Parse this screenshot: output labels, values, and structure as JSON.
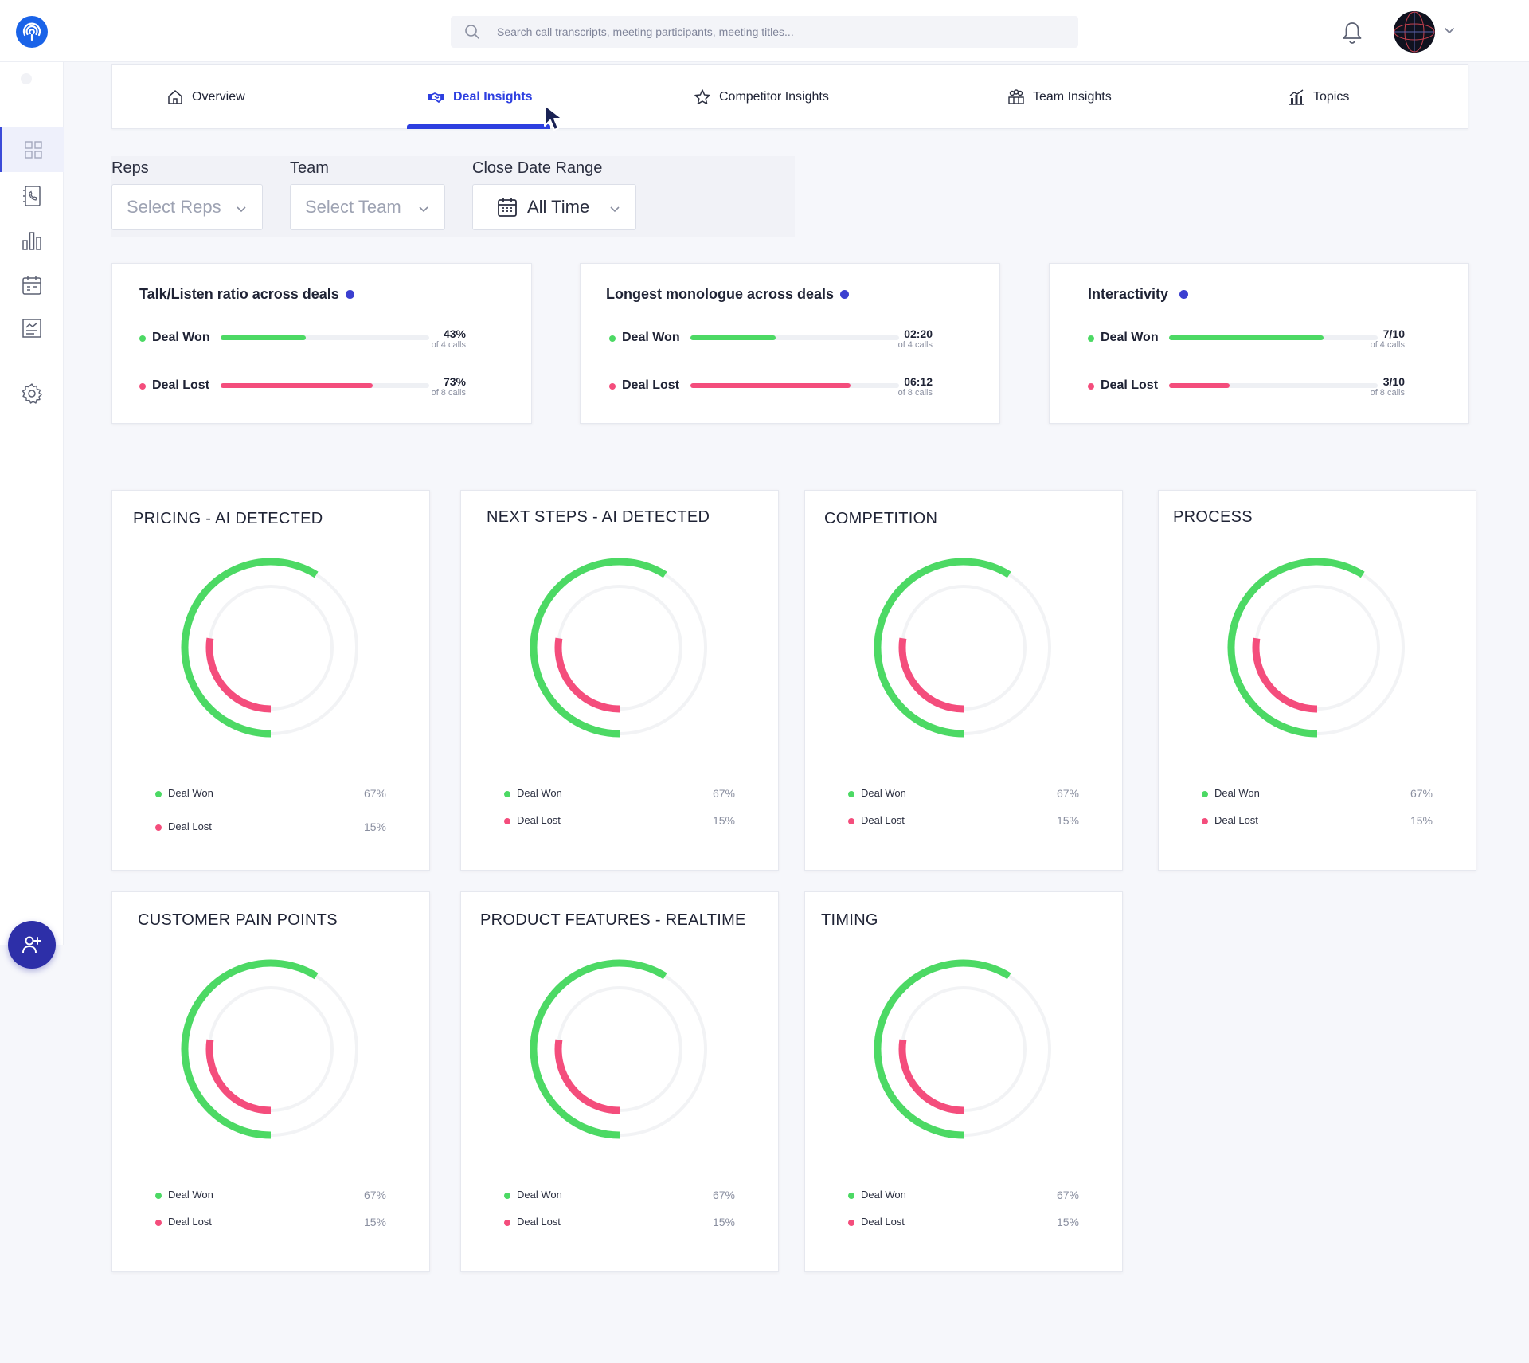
{
  "colors": {
    "won": "#4cd964",
    "lost": "#f44d7c",
    "accent": "#2d3fe0",
    "track": "#f2f3f5"
  },
  "search": {
    "placeholder": "Search call transcripts, meeting participants, meeting titles..."
  },
  "tabs": [
    {
      "label": "Overview",
      "icon": "home-icon"
    },
    {
      "label": "Deal Insights",
      "icon": "handshake-icon",
      "active": true
    },
    {
      "label": "Competitor Insights",
      "icon": "star-icon"
    },
    {
      "label": "Team Insights",
      "icon": "team-icon"
    },
    {
      "label": "Topics",
      "icon": "bar-chart-icon"
    }
  ],
  "sidebar": {
    "items": [
      {
        "name": "dashboard-icon",
        "active": true
      },
      {
        "name": "contacts-icon"
      },
      {
        "name": "analytics-icon"
      },
      {
        "name": "calendar-icon"
      },
      {
        "name": "reports-icon"
      },
      {
        "name": "settings-icon"
      }
    ]
  },
  "filters": {
    "reps": {
      "label": "Reps",
      "placeholder": "Select Reps"
    },
    "team": {
      "label": "Team",
      "placeholder": "Select Team"
    },
    "date": {
      "label": "Close Date Range",
      "value": "All Time"
    }
  },
  "metrics": [
    {
      "title": "Talk/Listen ratio across deals",
      "rows": [
        {
          "label": "Deal Won",
          "value": "43%",
          "sub": "of 4 calls",
          "fill": 0.41
        },
        {
          "label": "Deal Lost",
          "value": "73%",
          "sub": "of 8 calls",
          "fill": 0.73
        }
      ]
    },
    {
      "title": "Longest monologue across deals",
      "rows": [
        {
          "label": "Deal Won",
          "value": "02:20",
          "sub": "of 4 calls",
          "fill": 0.41
        },
        {
          "label": "Deal Lost",
          "value": "06:12",
          "sub": "of 8 calls",
          "fill": 0.77
        }
      ]
    },
    {
      "title": "Interactivity",
      "rows": [
        {
          "label": "Deal Won",
          "value": "7/10",
          "sub": "of 4 calls",
          "fill": 0.74
        },
        {
          "label": "Deal Lost",
          "value": "3/10",
          "sub": "of 8 calls",
          "fill": 0.29
        }
      ]
    }
  ],
  "topics": [
    {
      "title": "PRICING - AI DETECTED",
      "won_label": "Deal Won",
      "won": "67%",
      "lost_label": "Deal Lost",
      "lost": "15%"
    },
    {
      "title": "NEXT STEPS - AI DETECTED",
      "won_label": "Deal Won",
      "won": "67%",
      "lost_label": "Deal Lost",
      "lost": "15%"
    },
    {
      "title": "COMPETITION",
      "won_label": "Deal Won",
      "won": "67%",
      "lost_label": "Deal Lost",
      "lost": "15%"
    },
    {
      "title": "PROCESS",
      "won_label": "Deal Won",
      "won": "67%",
      "lost_label": "Deal Lost",
      "lost": "15%"
    },
    {
      "title": "CUSTOMER PAIN POINTS",
      "won_label": "Deal Won",
      "won": "67%",
      "lost_label": "Deal Lost",
      "lost": "15%"
    },
    {
      "title": "PRODUCT FEATURES - REALTIME",
      "won_label": "Deal Won",
      "won": "67%",
      "lost_label": "Deal Lost",
      "lost": "15%"
    },
    {
      "title": "TIMING",
      "won_label": "Deal Won",
      "won": "67%",
      "lost_label": "Deal Lost",
      "lost": "15%"
    }
  ]
}
